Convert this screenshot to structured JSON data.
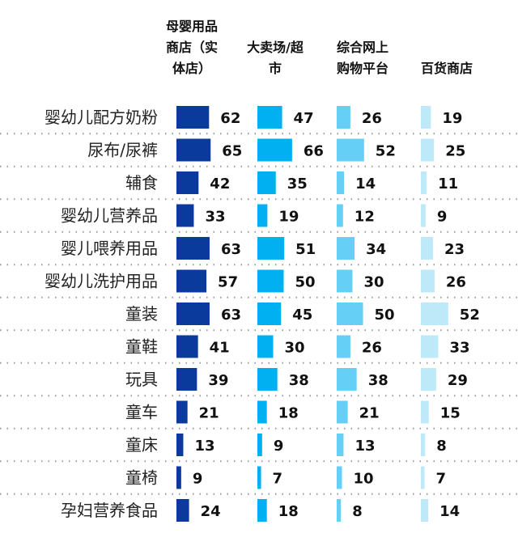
{
  "chart_data": {
    "type": "bar",
    "orientation": "horizontal",
    "headers": [
      [
        "母婴用品",
        "商店（实",
        "体店）"
      ],
      [
        "大卖场/超",
        "市"
      ],
      [
        "综合网上",
        "购物平台"
      ],
      [
        "百货商店"
      ]
    ],
    "categories": [
      "婴幼儿配方奶粉",
      "尿布/尿裤",
      "辅食",
      "婴幼儿营养品",
      "婴儿喂养用品",
      "婴幼儿洗护用品",
      "童装",
      "童鞋",
      "玩具",
      "童车",
      "童床",
      "童椅",
      "孕妇营养食品"
    ],
    "series": [
      {
        "name": "母婴用品商店（实体店）",
        "color": "#0a3a9c",
        "values": [
          62,
          65,
          42,
          33,
          63,
          57,
          63,
          41,
          39,
          21,
          13,
          9,
          24
        ]
      },
      {
        "name": "大卖场/超市",
        "color": "#00b0f0",
        "values": [
          47,
          66,
          35,
          19,
          51,
          50,
          45,
          30,
          38,
          18,
          9,
          7,
          18
        ]
      },
      {
        "name": "综合网上购物平台",
        "color": "#66cff5",
        "values": [
          26,
          52,
          14,
          12,
          34,
          30,
          50,
          26,
          38,
          21,
          13,
          10,
          8
        ]
      },
      {
        "name": "百货商店",
        "color": "#bde9f9",
        "values": [
          19,
          25,
          11,
          9,
          23,
          26,
          52,
          33,
          29,
          15,
          8,
          7,
          14
        ]
      }
    ]
  }
}
